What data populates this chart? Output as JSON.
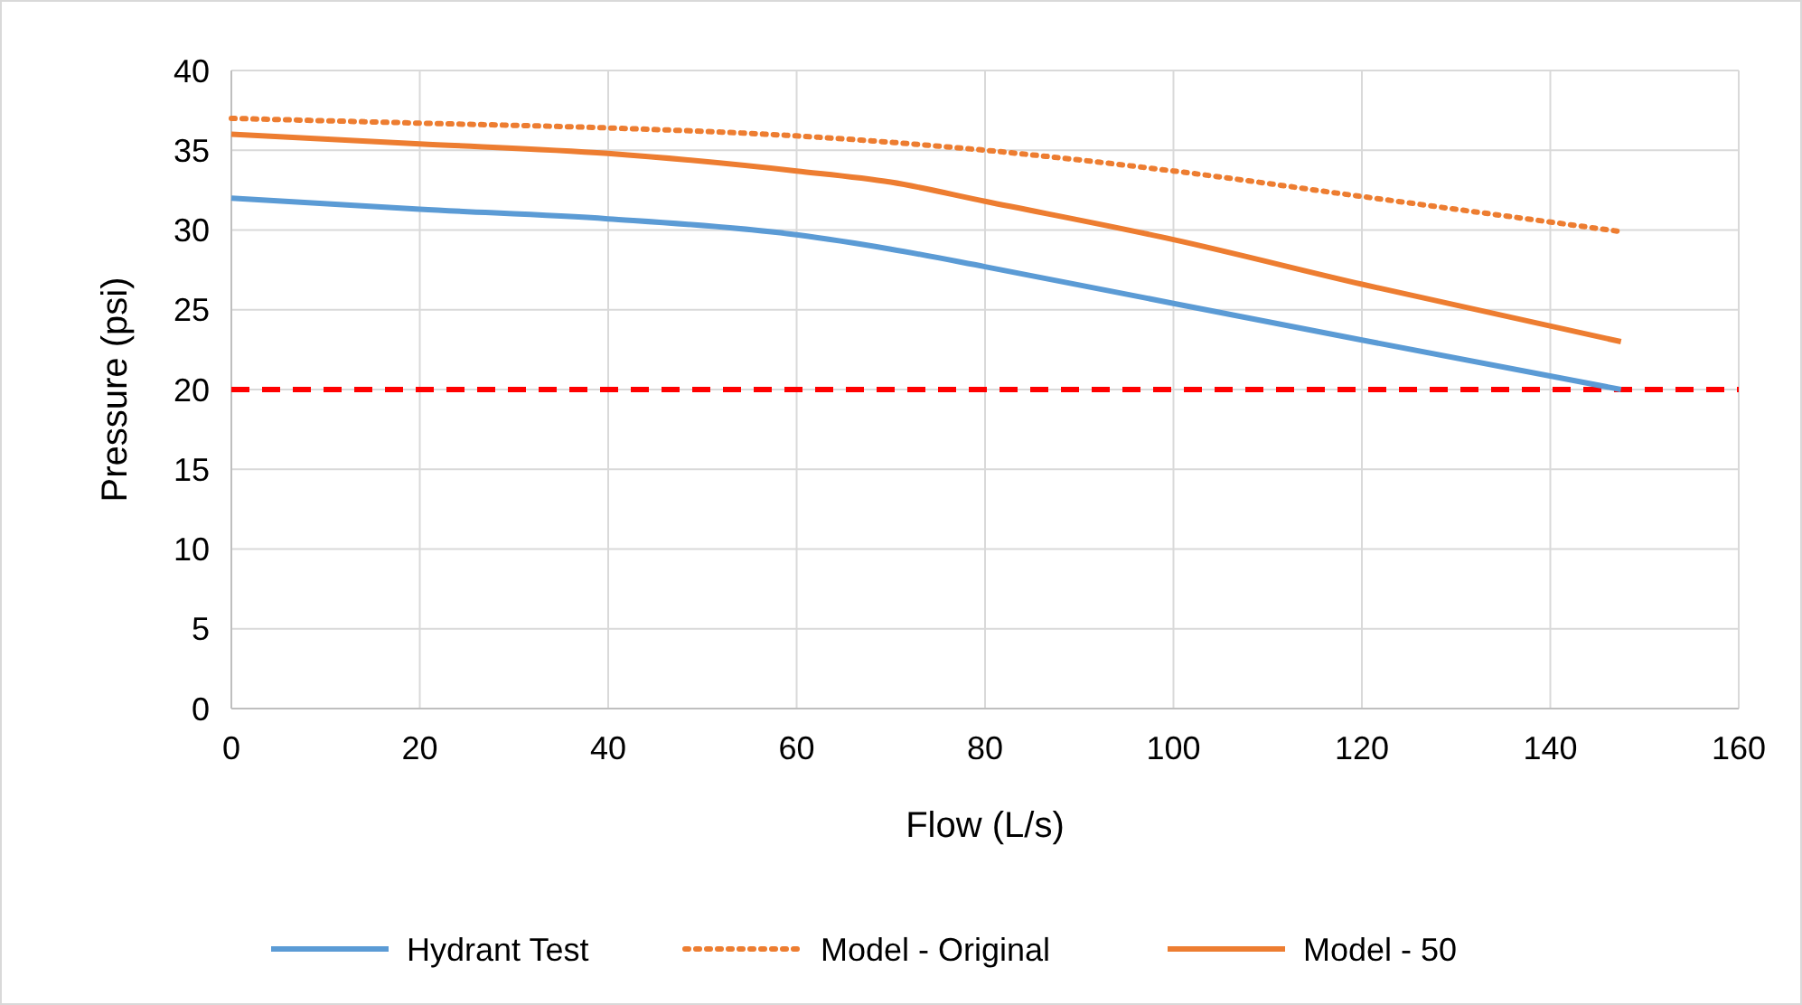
{
  "chart_data": {
    "type": "line",
    "xlabel": "Flow (L/s)",
    "ylabel": "Pressure (psi)",
    "xlim": [
      0,
      160
    ],
    "xticks": [
      0,
      20,
      40,
      60,
      80,
      100,
      120,
      140,
      160
    ],
    "ylim": [
      0,
      40
    ],
    "yticks": [
      0,
      5,
      10,
      15,
      20,
      25,
      30,
      35,
      40
    ],
    "grid": true,
    "legend": "bottom",
    "marker": "none",
    "series": [
      {
        "name": "Hydrant Test",
        "color": "#5b9bd5",
        "line_style": "solid",
        "x": [
          0,
          20,
          40,
          60,
          70,
          80,
          100,
          120,
          147.5
        ],
        "values": [
          32,
          31.3,
          30.7,
          29.7,
          28.8,
          27.7,
          25.4,
          23.1,
          20
        ]
      },
      {
        "name": "Model - Original",
        "color": "#ed7d31",
        "line_style": "dotted",
        "x": [
          0,
          20,
          40,
          60,
          70,
          80,
          100,
          120,
          147.5
        ],
        "values": [
          37,
          36.7,
          36.4,
          35.9,
          35.5,
          35,
          33.7,
          32.1,
          29.9
        ]
      },
      {
        "name": "Model - 50",
        "color": "#ed7d31",
        "line_style": "solid",
        "x": [
          0,
          20,
          40,
          60,
          70,
          80,
          100,
          120,
          147.5
        ],
        "values": [
          36,
          35.4,
          34.8,
          33.7,
          33,
          31.8,
          29.4,
          26.6,
          23
        ]
      }
    ],
    "ref_lines": [
      {
        "axis": "y",
        "value": 20,
        "color": "#ff0000",
        "line_style": "dashed"
      }
    ]
  }
}
